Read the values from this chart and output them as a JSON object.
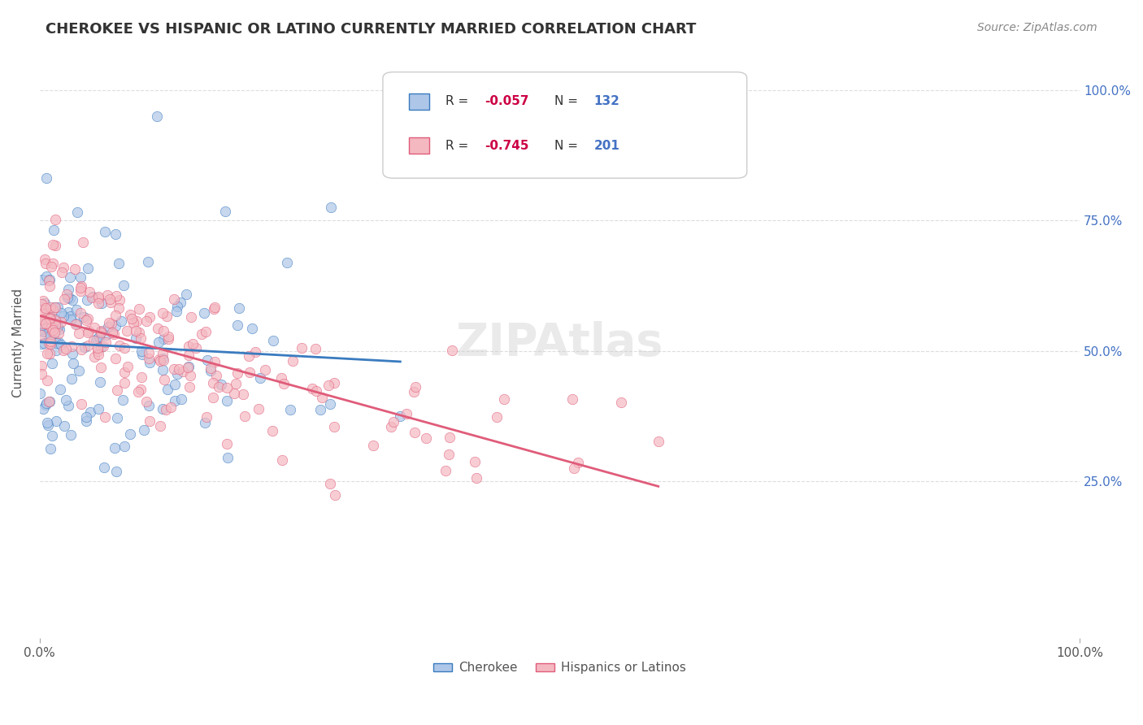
{
  "title": "CHEROKEE VS HISPANIC OR LATINO CURRENTLY MARRIED CORRELATION CHART",
  "source": "Source: ZipAtlas.com",
  "ylabel": "Currently Married",
  "x_tick_labels": [
    "0.0%",
    "100.0%"
  ],
  "y_tick_positions": [
    0.25,
    0.5,
    0.75,
    1.0
  ],
  "y_tick_labels": [
    "25.0%",
    "50.0%",
    "75.0%",
    "100.0%"
  ],
  "legend_labels_bottom": [
    "Cherokee",
    "Hispanics or Latinos"
  ],
  "cherokee_R": -0.057,
  "cherokee_N": 132,
  "hispanic_R": -0.745,
  "hispanic_N": 201,
  "scatter_color_cherokee": "#aec6e8",
  "scatter_color_hispanic": "#f4b8c1",
  "line_color_cherokee": "#3a7bbf",
  "line_color_hispanic": "#e05c7a",
  "bg_color": "#ffffff",
  "grid_color": "#dddddd",
  "title_color": "#333333",
  "axis_label_color": "#555555",
  "right_tick_color": "#4472c4",
  "legend_R_neg_color": "#cc0044",
  "legend_N_color": "#4472c4",
  "watermark_text": "ZIPAtlas",
  "x_min": 0.0,
  "x_max": 1.0,
  "y_min": -0.05,
  "y_max": 1.08,
  "seed": 42
}
